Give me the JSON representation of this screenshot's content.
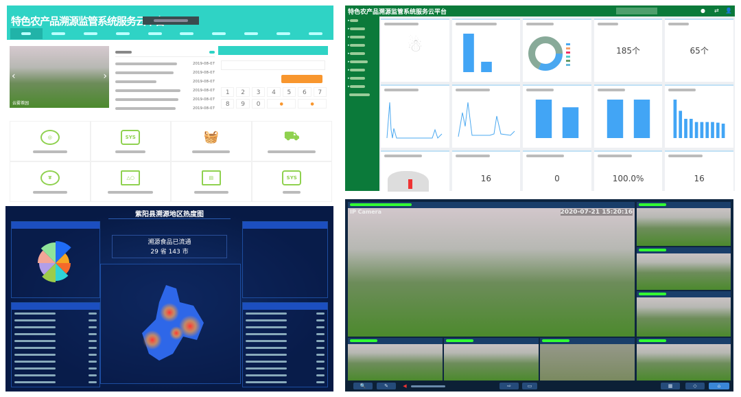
{
  "portal": {
    "title": "特色农产品溯源监管系统服务云平台",
    "carousel_caption": "云雾茶园",
    "news_date": "2019-08-07",
    "keypad": [
      "1",
      "2",
      "3",
      "4",
      "5",
      "6",
      "7",
      "8",
      "9",
      "0"
    ],
    "system_icons": [
      "shield-icon",
      "sys-diamond-icon",
      "basket-icon",
      "truck-icon",
      "yuan-icon",
      "presentation-icon",
      "certificate-icon",
      "sys-diamond-icon"
    ],
    "sys_label": "SYS",
    "accent": "#2fd3c5",
    "button_color": "#f8962e"
  },
  "dashboard": {
    "title": "特色农产品溯源监管系统服务云平台",
    "accent": "#0b7a3a",
    "stats": {
      "product_count": "185个",
      "enterprise_count": "65个",
      "scan_count": "16",
      "abnormal_count": "0",
      "rate": "100.0%",
      "query_count": "16"
    },
    "bar_chart_1": [
      2600,
      700,
      0
    ],
    "bar_chart_2": [
      5,
      4
    ],
    "bar_chart_3": [
      7,
      7
    ],
    "bar_chart_4": [
      12000,
      8500,
      6000,
      6000,
      5000,
      5000,
      5000,
      5000,
      4800,
      4500
    ]
  },
  "heatmap": {
    "title": "紫阳县溯源地区热度图",
    "stat_line1": "溯源食品已流通",
    "stat_line2": "29 省 143 市",
    "pie_colors": [
      "#1f6cf5",
      "#f5a623",
      "#f56a2a",
      "#2fd3d6",
      "#9ccc4a",
      "#b29ee8",
      "#f2a597",
      "#8fe39a"
    ],
    "bg": "#071a45"
  },
  "cameras": {
    "main_label": "IP Camera",
    "timestamp": "2020-07-21 15:20:16"
  }
}
